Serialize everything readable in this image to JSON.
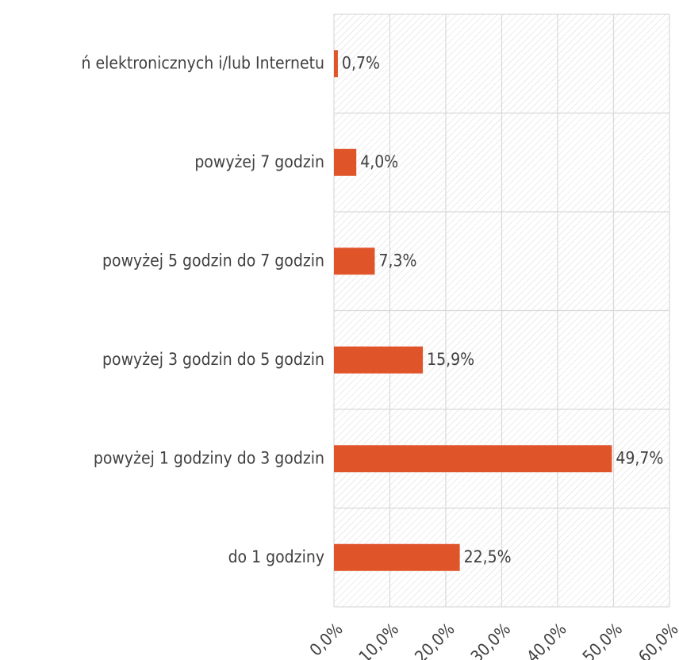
{
  "chart_data": {
    "type": "barh",
    "categories": [
      "ń elektronicznych i/lub Internetu",
      "powyżej 7 godzin",
      "powyżej 5 godzin do 7 godzin",
      "powyżej 3 godzin do 5 godzin",
      "powyżej 1 godziny do 3 godzin",
      "do 1 godziny"
    ],
    "values": [
      0.7,
      4.0,
      7.3,
      15.9,
      49.7,
      22.5
    ],
    "value_labels": [
      "0,7%",
      "4,0%",
      "7,3%",
      "15,9%",
      "49,7%",
      "22,5%"
    ],
    "color": "#e0542a",
    "xlim": [
      0,
      60
    ],
    "xticks": [
      {
        "value": 0,
        "label": "0,0%"
      },
      {
        "value": 10,
        "label": "10,0%"
      },
      {
        "value": 20,
        "label": "20,0%"
      },
      {
        "value": 30,
        "label": "30,0%"
      },
      {
        "value": 40,
        "label": "40,0%"
      },
      {
        "value": 50,
        "label": "50,0%"
      },
      {
        "value": 60,
        "label": "60,0%"
      }
    ],
    "grid": true
  }
}
